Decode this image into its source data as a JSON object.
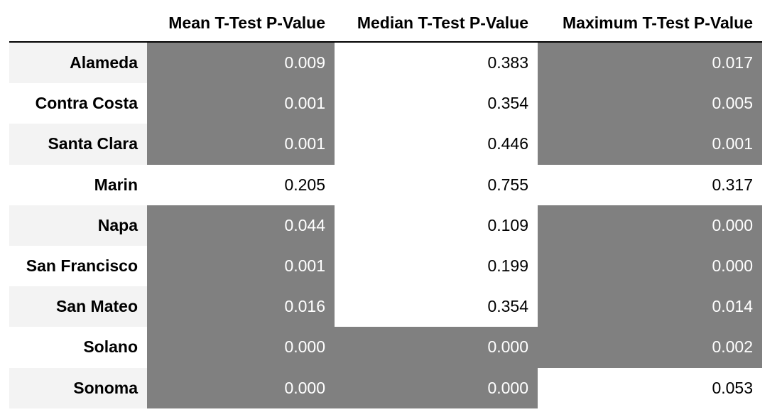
{
  "chart_data": {
    "type": "table",
    "columns": [
      "Mean T-Test P-Value",
      "Median T-Test P-Value",
      "Maximum T-Test P-Value"
    ],
    "rows": [
      {
        "label": "Alameda",
        "values": [
          "0.009",
          "0.383",
          "0.017"
        ],
        "highlight": [
          true,
          false,
          true
        ]
      },
      {
        "label": "Contra Costa",
        "values": [
          "0.001",
          "0.354",
          "0.005"
        ],
        "highlight": [
          true,
          false,
          true
        ]
      },
      {
        "label": "Santa Clara",
        "values": [
          "0.001",
          "0.446",
          "0.001"
        ],
        "highlight": [
          true,
          false,
          true
        ]
      },
      {
        "label": "Marin",
        "values": [
          "0.205",
          "0.755",
          "0.317"
        ],
        "highlight": [
          false,
          false,
          false
        ]
      },
      {
        "label": "Napa",
        "values": [
          "0.044",
          "0.109",
          "0.000"
        ],
        "highlight": [
          true,
          false,
          true
        ]
      },
      {
        "label": "San Francisco",
        "values": [
          "0.001",
          "0.199",
          "0.000"
        ],
        "highlight": [
          true,
          false,
          true
        ]
      },
      {
        "label": "San Mateo",
        "values": [
          "0.016",
          "0.354",
          "0.014"
        ],
        "highlight": [
          true,
          false,
          true
        ]
      },
      {
        "label": "Solano",
        "values": [
          "0.000",
          "0.000",
          "0.002"
        ],
        "highlight": [
          true,
          true,
          true
        ]
      },
      {
        "label": "Sonoma",
        "values": [
          "0.000",
          "0.000",
          "0.053"
        ],
        "highlight": [
          true,
          true,
          false
        ]
      }
    ],
    "colors": {
      "highlight_bg": "#808080",
      "highlight_text": "#ffffff",
      "stripe_bg": "#f3f3f3"
    }
  }
}
